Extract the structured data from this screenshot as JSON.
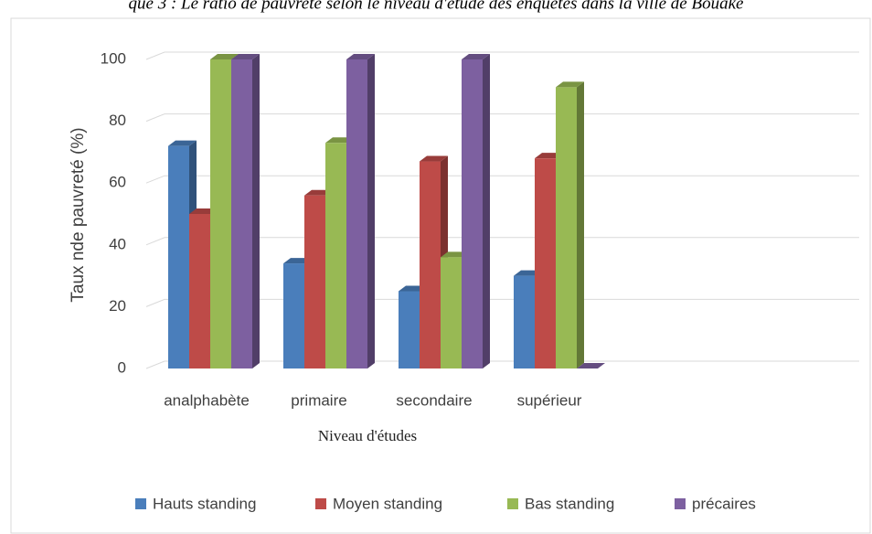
{
  "chart_data": {
    "type": "bar3d",
    "title": "que 3 : Le ratio de pauvreté selon le niveau d'étude des enquêtés dans la ville de Bouaké",
    "x_label": "Niveau d'études",
    "y_label": "Taux nde pauvreté (%)",
    "categories": [
      "analphabète",
      "primaire",
      "secondaire",
      "supérieur"
    ],
    "series": [
      {
        "name": "Hauts standing",
        "color": "#4a7ebb",
        "values": [
          72,
          34,
          25,
          30
        ]
      },
      {
        "name": "Moyen standing",
        "color": "#be4b48",
        "values": [
          50,
          56,
          67,
          68
        ]
      },
      {
        "name": "Bas standing",
        "color": "#98b954",
        "values": [
          100,
          73,
          36,
          91
        ]
      },
      {
        "name": "précaires",
        "color": "#7d60a0",
        "values": [
          100,
          100,
          100,
          0
        ]
      }
    ],
    "ylim": [
      0,
      100
    ],
    "yticks": [
      0,
      20,
      40,
      60,
      80,
      100
    ],
    "grid": true,
    "legend": "bottom"
  }
}
